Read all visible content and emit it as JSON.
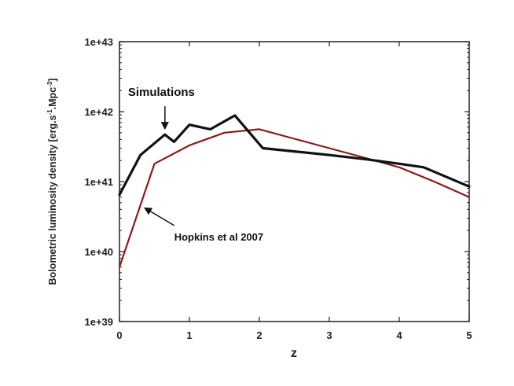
{
  "chart_data": {
    "type": "line",
    "xlabel": "z",
    "ylabel": "Bolometric luminosity density [erg.s-1.Mpc-3]",
    "ylabel_parts": {
      "pre": "Bolometric luminosity density [erg.s",
      "sup1": "-1",
      "mid": ".Mpc",
      "sup2": "-3",
      "post": "]"
    },
    "xlim": [
      0,
      5
    ],
    "ylim": [
      1e+39,
      1e+43
    ],
    "yscale": "log",
    "x_ticks": [
      "0",
      "1",
      "2",
      "3",
      "4",
      "5"
    ],
    "y_ticks": [
      "1e+39",
      "1e+40",
      "1e+41",
      "1e+42",
      "1e+43"
    ],
    "grid": false,
    "series": [
      {
        "name": "Simulations",
        "color": "#111111",
        "x": [
          0,
          0.3,
          0.65,
          0.78,
          1.0,
          1.3,
          1.65,
          2.05,
          2.5,
          3.0,
          3.5,
          4.0,
          4.35,
          5.0
        ],
        "y": [
          6.5e+40,
          2.4e+41,
          4.7e+41,
          3.7e+41,
          6.5e+41,
          5.6e+41,
          8.8e+41,
          3e+41,
          2.7e+41,
          2.4e+41,
          2.1e+41,
          1.8e+41,
          1.6e+41,
          8.5e+40
        ]
      },
      {
        "name": "Hopkins et al 2007",
        "color": "#8b1a1a",
        "x": [
          0,
          0.5,
          1.0,
          1.5,
          2.0,
          2.5,
          3.0,
          3.5,
          4.0,
          4.5,
          5.0
        ],
        "y": [
          6e+39,
          1.8e+41,
          3.3e+41,
          5e+41,
          5.6e+41,
          4.1e+41,
          3e+41,
          2.2e+41,
          1.6e+41,
          1e+41,
          6e+40
        ]
      }
    ],
    "annotations": [
      {
        "text": "Simulations",
        "target_series": 0
      },
      {
        "text": "Hopkins et al 2007",
        "target_series": 1
      }
    ]
  }
}
